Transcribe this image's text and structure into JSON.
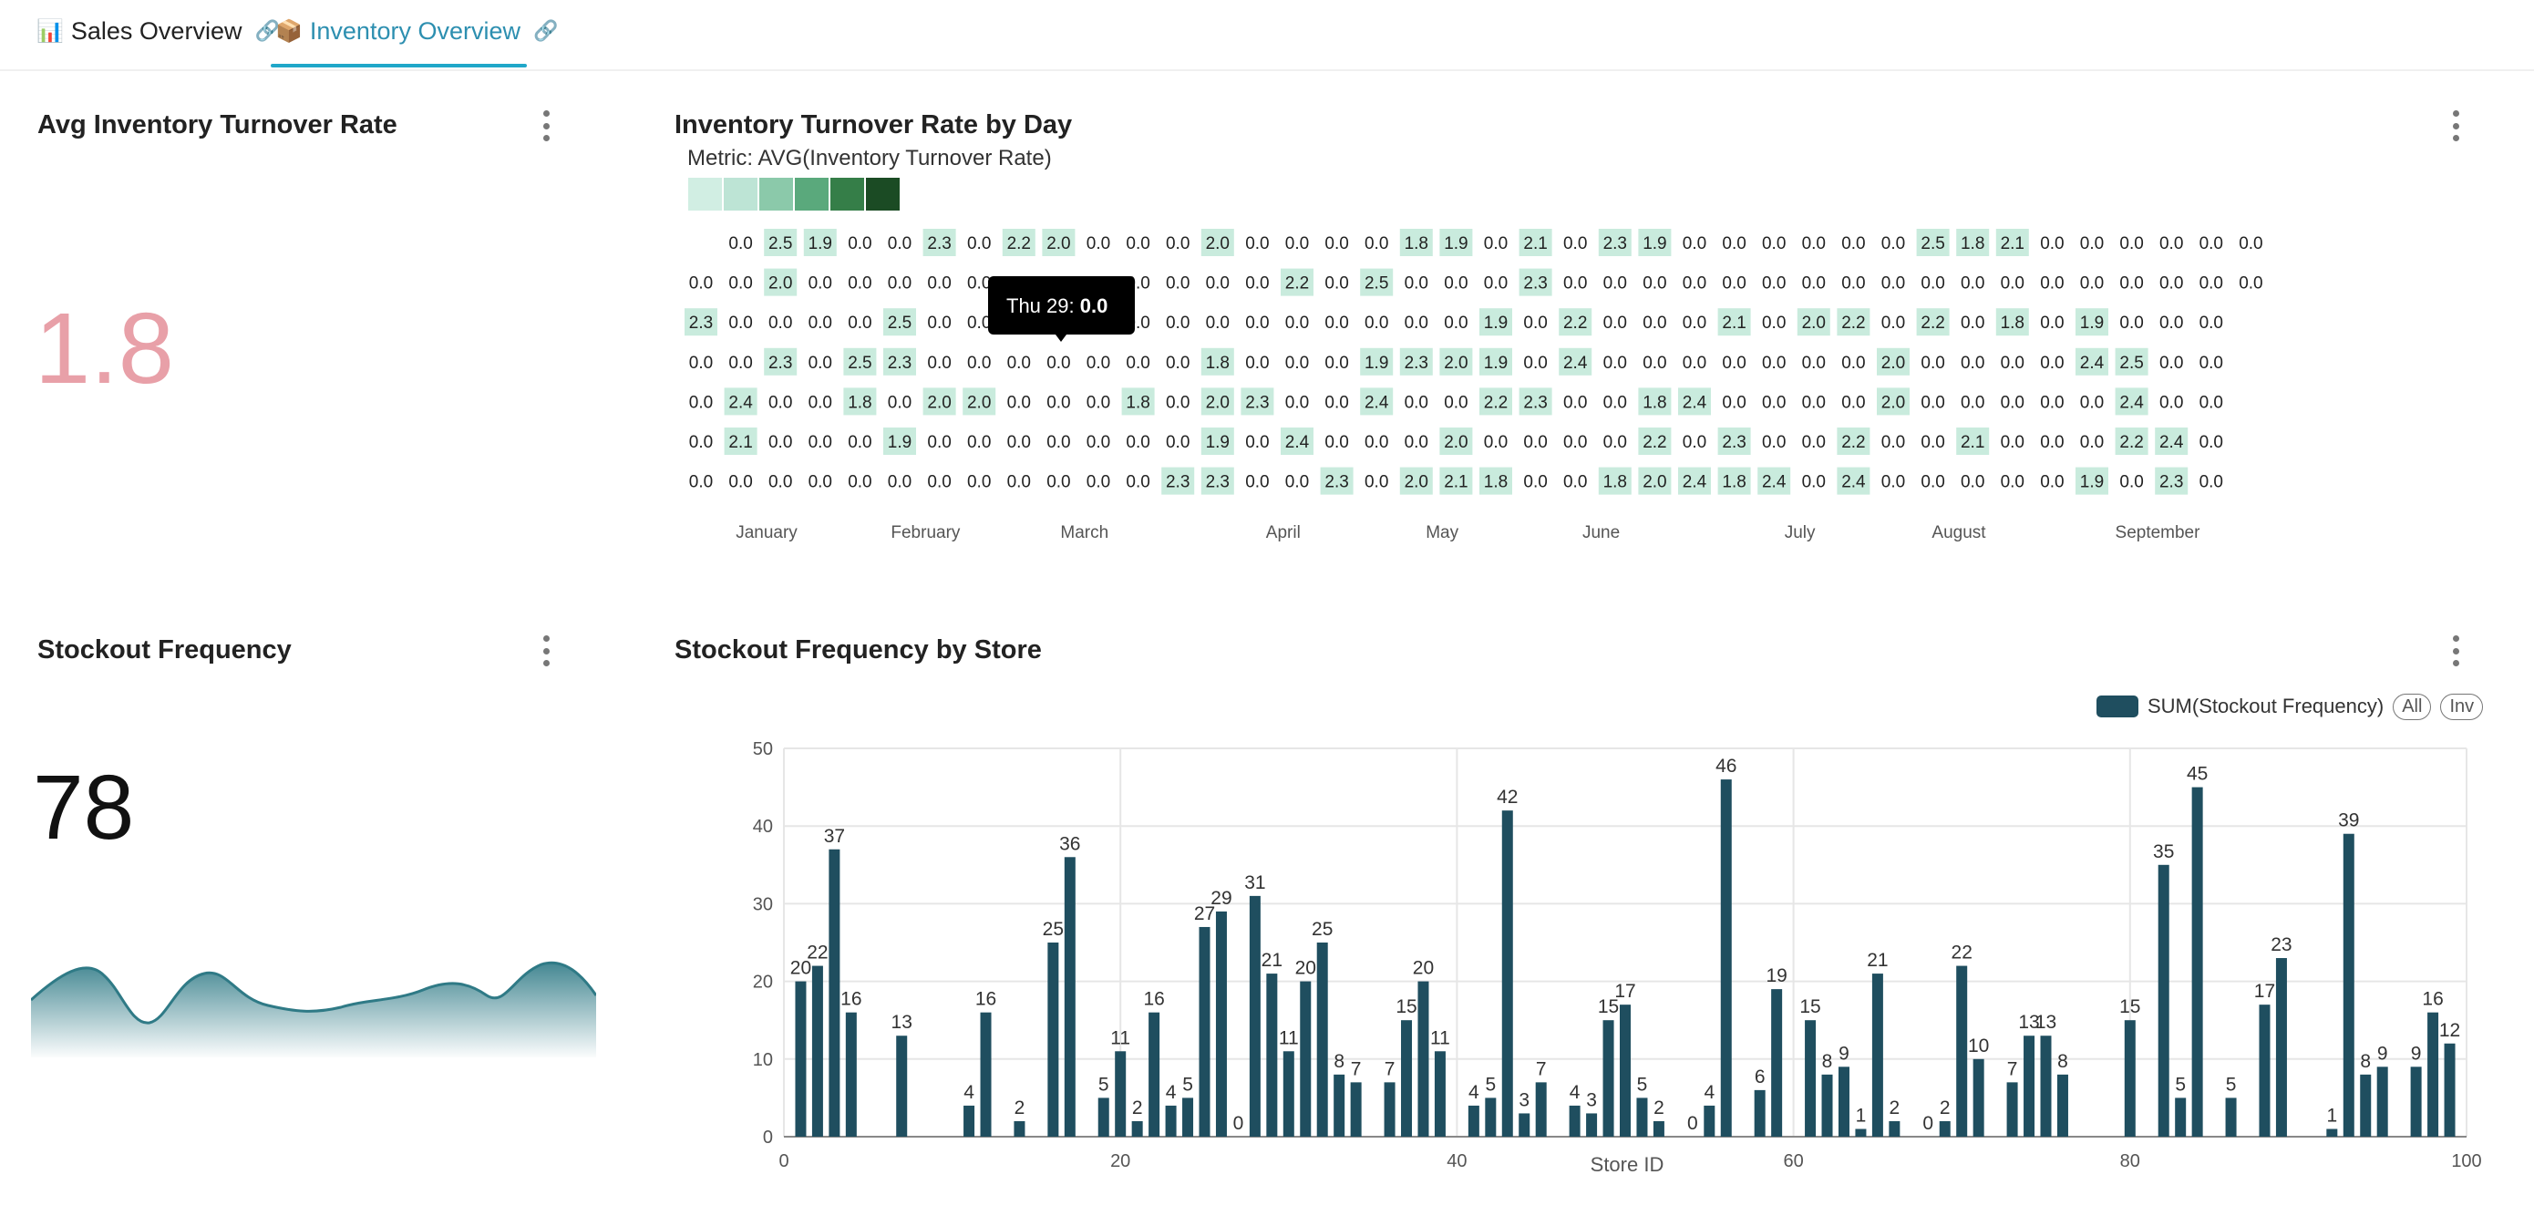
{
  "tabs": [
    {
      "icon": "📊",
      "label": "Sales Overview",
      "active": false
    },
    {
      "icon": "📦",
      "label": "Inventory Overview",
      "active": true
    }
  ],
  "kpi_turnover": {
    "title": "Avg Inventory Turnover Rate",
    "value": "1.8",
    "color": "#e8a0a8"
  },
  "kpi_stockout": {
    "title": "Stockout Frequency",
    "value": "78",
    "color": "#111111"
  },
  "heatmap": {
    "title": "Inventory Turnover Rate by Day",
    "metric_label": "Metric: AVG(Inventory Turnover Rate)",
    "legend_colors": [
      "#d1eee3",
      "#bde4d5",
      "#8bc9aa",
      "#5aa97c",
      "#357e48",
      "#1b4b24"
    ],
    "months": [
      "January",
      "February",
      "March",
      "April",
      "May",
      "June",
      "July",
      "August",
      "September"
    ],
    "tooltip": {
      "label": "Thu 29:",
      "value": "0.0"
    }
  },
  "chart_data": {
    "type": "bar",
    "title": "Stockout Frequency by Store",
    "xlabel": "Store ID",
    "ylabel": "",
    "xlim": [
      0,
      100
    ],
    "ylim": [
      0,
      50
    ],
    "x_ticks": [
      0,
      20,
      40,
      60,
      80,
      100
    ],
    "y_ticks": [
      0,
      10,
      20,
      30,
      40,
      50
    ],
    "legend": "top-right",
    "series": [
      {
        "name": "SUM(Stockout Frequency)",
        "color": "#1f4e5f",
        "x": [
          1,
          2,
          3,
          4,
          7,
          11,
          12,
          14,
          16,
          17,
          19,
          20,
          21,
          22,
          23,
          24,
          25,
          26,
          27,
          28,
          29,
          30,
          31,
          32,
          33,
          34,
          36,
          37,
          38,
          39,
          41,
          42,
          43,
          44,
          45,
          47,
          48,
          49,
          50,
          51,
          52,
          54,
          55,
          56,
          58,
          59,
          61,
          62,
          63,
          64,
          65,
          66,
          68,
          69,
          70,
          71,
          73,
          74,
          75,
          76,
          80,
          82,
          83,
          84,
          86,
          88,
          89,
          92,
          93,
          94,
          95,
          97,
          98,
          99
        ],
        "values": [
          20,
          22,
          37,
          16,
          13,
          4,
          16,
          2,
          25,
          36,
          5,
          11,
          2,
          16,
          4,
          5,
          27,
          29,
          0,
          31,
          21,
          11,
          20,
          25,
          8,
          7,
          7,
          15,
          20,
          11,
          4,
          5,
          42,
          3,
          7,
          4,
          3,
          15,
          17,
          5,
          2,
          0,
          4,
          46,
          6,
          19,
          15,
          8,
          9,
          1,
          21,
          2,
          0,
          2,
          22,
          10,
          7,
          13,
          13,
          8,
          15,
          35,
          5,
          45,
          5,
          17,
          23,
          1,
          39,
          8,
          9,
          9,
          16,
          12
        ]
      }
    ]
  }
}
